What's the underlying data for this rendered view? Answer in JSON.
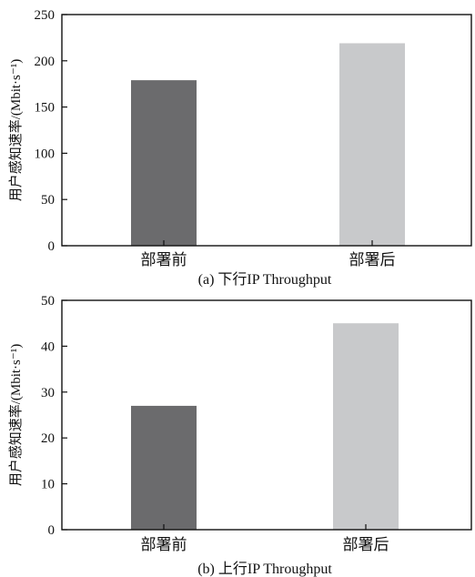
{
  "chart_data": [
    {
      "type": "bar",
      "categories": [
        "部署前",
        "部署后"
      ],
      "values": [
        179,
        219
      ],
      "colors": [
        "#6b6b6d",
        "#c8c9cb"
      ],
      "ylabel": "用户感知速率/(Mbit·s⁻¹)",
      "ylim": [
        0,
        250
      ],
      "yticks": [
        0,
        50,
        100,
        150,
        200,
        250
      ],
      "caption": "(a)  下行IP Throughput",
      "grid": false
    },
    {
      "type": "bar",
      "categories": [
        "部署前",
        "部署后"
      ],
      "values": [
        27,
        45
      ],
      "colors": [
        "#6b6b6d",
        "#c8c9cb"
      ],
      "ylabel": "用户感知速率/(Mbit·s⁻¹)",
      "ylim": [
        0,
        50
      ],
      "yticks": [
        0,
        10,
        20,
        30,
        40,
        50
      ],
      "caption": "(b)  上行IP Throughput",
      "grid": false
    }
  ]
}
